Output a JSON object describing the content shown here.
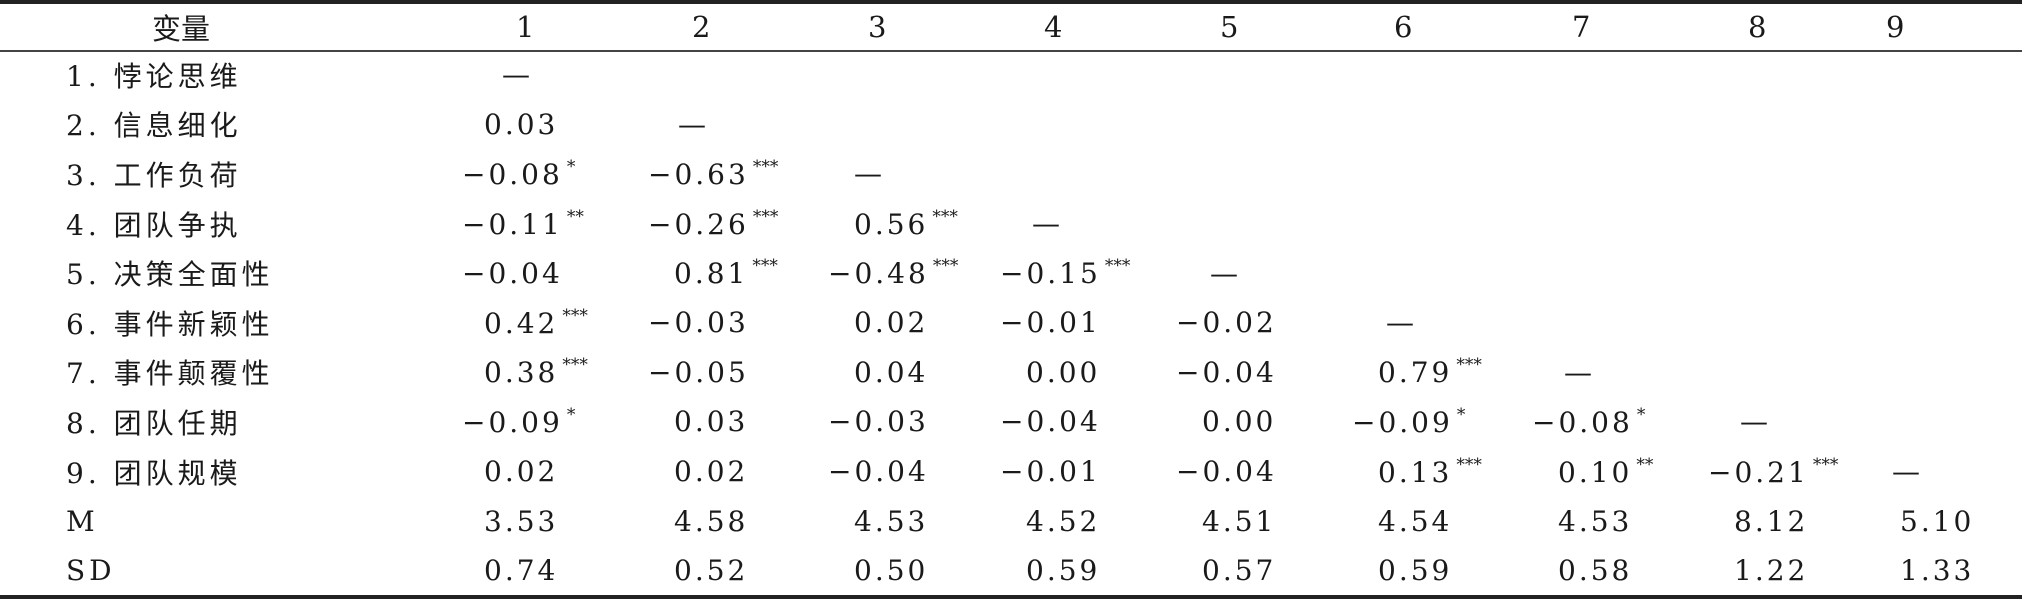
{
  "header": [
    "变量",
    "1",
    "2",
    "3",
    "4",
    "5",
    "6",
    "7",
    "8",
    "9"
  ],
  "rows": [
    {
      "label": "1. 悖论思维",
      "cells": [
        {
          "v": "—",
          "s": ""
        },
        {
          "v": "",
          "s": ""
        },
        {
          "v": "",
          "s": ""
        },
        {
          "v": "",
          "s": ""
        },
        {
          "v": "",
          "s": ""
        },
        {
          "v": "",
          "s": ""
        },
        {
          "v": "",
          "s": ""
        },
        {
          "v": "",
          "s": ""
        },
        {
          "v": "",
          "s": ""
        }
      ]
    },
    {
      "label": "2. 信息细化",
      "cells": [
        {
          "v": "0.03",
          "s": ""
        },
        {
          "v": "—",
          "s": ""
        },
        {
          "v": "",
          "s": ""
        },
        {
          "v": "",
          "s": ""
        },
        {
          "v": "",
          "s": ""
        },
        {
          "v": "",
          "s": ""
        },
        {
          "v": "",
          "s": ""
        },
        {
          "v": "",
          "s": ""
        },
        {
          "v": "",
          "s": ""
        }
      ]
    },
    {
      "label": "3. 工作负荷",
      "cells": [
        {
          "v": "−0.08",
          "s": "*"
        },
        {
          "v": "−0.63",
          "s": "***"
        },
        {
          "v": "—",
          "s": ""
        },
        {
          "v": "",
          "s": ""
        },
        {
          "v": "",
          "s": ""
        },
        {
          "v": "",
          "s": ""
        },
        {
          "v": "",
          "s": ""
        },
        {
          "v": "",
          "s": ""
        },
        {
          "v": "",
          "s": ""
        }
      ]
    },
    {
      "label": "4. 团队争执",
      "cells": [
        {
          "v": "−0.11",
          "s": "**"
        },
        {
          "v": "−0.26",
          "s": "***"
        },
        {
          "v": "0.56",
          "s": "***"
        },
        {
          "v": "—",
          "s": ""
        },
        {
          "v": "",
          "s": ""
        },
        {
          "v": "",
          "s": ""
        },
        {
          "v": "",
          "s": ""
        },
        {
          "v": "",
          "s": ""
        },
        {
          "v": "",
          "s": ""
        }
      ]
    },
    {
      "label": "5. 决策全面性",
      "cells": [
        {
          "v": "−0.04",
          "s": ""
        },
        {
          "v": "0.81",
          "s": "***"
        },
        {
          "v": "−0.48",
          "s": "***"
        },
        {
          "v": "−0.15",
          "s": "***"
        },
        {
          "v": "—",
          "s": ""
        },
        {
          "v": "",
          "s": ""
        },
        {
          "v": "",
          "s": ""
        },
        {
          "v": "",
          "s": ""
        },
        {
          "v": "",
          "s": ""
        }
      ]
    },
    {
      "label": "6. 事件新颖性",
      "cells": [
        {
          "v": "0.42",
          "s": "***"
        },
        {
          "v": "−0.03",
          "s": ""
        },
        {
          "v": "0.02",
          "s": ""
        },
        {
          "v": "−0.01",
          "s": ""
        },
        {
          "v": "−0.02",
          "s": ""
        },
        {
          "v": "—",
          "s": ""
        },
        {
          "v": "",
          "s": ""
        },
        {
          "v": "",
          "s": ""
        },
        {
          "v": "",
          "s": ""
        }
      ]
    },
    {
      "label": "7. 事件颠覆性",
      "cells": [
        {
          "v": "0.38",
          "s": "***"
        },
        {
          "v": "−0.05",
          "s": ""
        },
        {
          "v": "0.04",
          "s": ""
        },
        {
          "v": "0.00",
          "s": ""
        },
        {
          "v": "−0.04",
          "s": ""
        },
        {
          "v": "0.79",
          "s": "***"
        },
        {
          "v": "—",
          "s": ""
        },
        {
          "v": "",
          "s": ""
        },
        {
          "v": "",
          "s": ""
        }
      ]
    },
    {
      "label": "8. 团队任期",
      "cells": [
        {
          "v": "−0.09",
          "s": "*"
        },
        {
          "v": "0.03",
          "s": ""
        },
        {
          "v": "−0.03",
          "s": ""
        },
        {
          "v": "−0.04",
          "s": ""
        },
        {
          "v": "0.00",
          "s": ""
        },
        {
          "v": "−0.09",
          "s": "*"
        },
        {
          "v": "−0.08",
          "s": "*"
        },
        {
          "v": "—",
          "s": ""
        },
        {
          "v": "",
          "s": ""
        }
      ]
    },
    {
      "label": "9. 团队规模",
      "cells": [
        {
          "v": "0.02",
          "s": ""
        },
        {
          "v": "0.02",
          "s": ""
        },
        {
          "v": "−0.04",
          "s": ""
        },
        {
          "v": "−0.01",
          "s": ""
        },
        {
          "v": "−0.04",
          "s": ""
        },
        {
          "v": "0.13",
          "s": "***"
        },
        {
          "v": "0.10",
          "s": "**"
        },
        {
          "v": "−0.21",
          "s": "***"
        },
        {
          "v": "—",
          "s": ""
        }
      ]
    },
    {
      "label": "M",
      "cells": [
        {
          "v": "3.53",
          "s": ""
        },
        {
          "v": "4.58",
          "s": ""
        },
        {
          "v": "4.53",
          "s": ""
        },
        {
          "v": "4.52",
          "s": ""
        },
        {
          "v": "4.51",
          "s": ""
        },
        {
          "v": "4.54",
          "s": ""
        },
        {
          "v": "4.53",
          "s": ""
        },
        {
          "v": "8.12",
          "s": ""
        },
        {
          "v": "5.10",
          "s": ""
        }
      ]
    },
    {
      "label": "SD",
      "cells": [
        {
          "v": "0.74",
          "s": ""
        },
        {
          "v": "0.52",
          "s": ""
        },
        {
          "v": "0.50",
          "s": ""
        },
        {
          "v": "0.59",
          "s": ""
        },
        {
          "v": "0.57",
          "s": ""
        },
        {
          "v": "0.59",
          "s": ""
        },
        {
          "v": "0.58",
          "s": ""
        },
        {
          "v": "1.22",
          "s": ""
        },
        {
          "v": "1.33",
          "s": ""
        }
      ]
    }
  ]
}
